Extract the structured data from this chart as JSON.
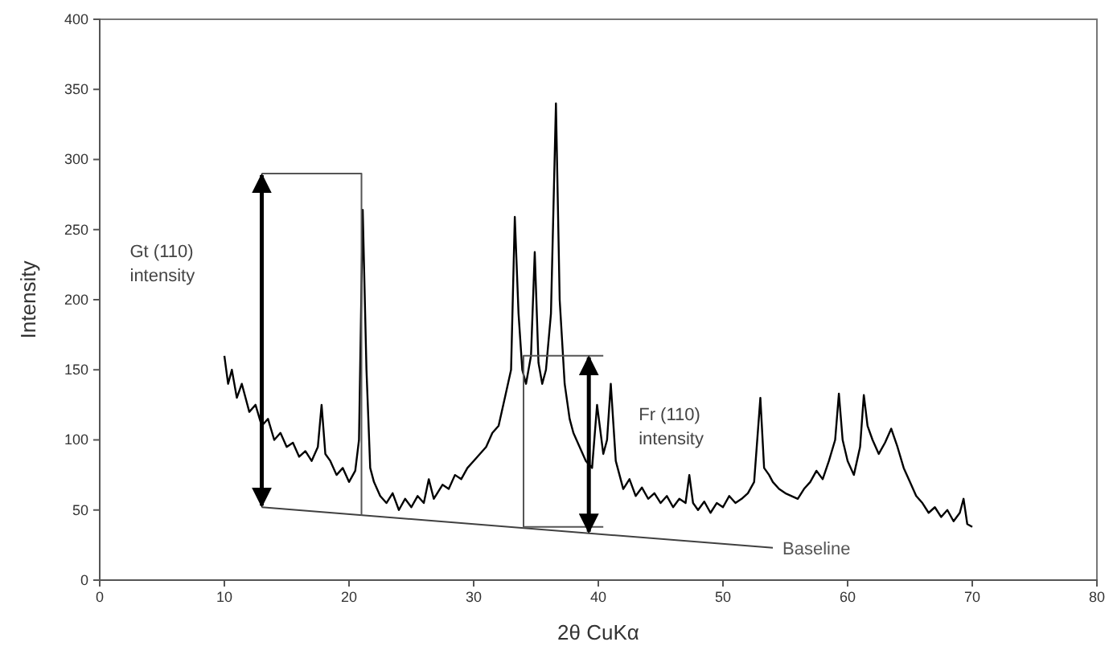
{
  "chart_data": {
    "type": "line",
    "xlabel": "2θ CuKα",
    "ylabel": "Intensity",
    "xlim": [
      0,
      80
    ],
    "xticks": [
      0,
      10,
      20,
      30,
      40,
      50,
      60,
      70,
      80
    ],
    "ylim": [
      0,
      400
    ],
    "yticks": [
      0,
      50,
      100,
      150,
      200,
      250,
      300,
      350,
      400
    ],
    "grid": false,
    "legend": false,
    "marker": "none",
    "line_style": "solid",
    "series": [
      {
        "color": "#000000",
        "x": [
          10,
          10.3,
          10.6,
          11,
          11.4,
          12,
          12.5,
          13,
          13.5,
          14,
          14.5,
          15,
          15.5,
          16,
          16.5,
          17,
          17.5,
          17.8,
          18.1,
          18.5,
          19,
          19.5,
          20,
          20.5,
          20.8,
          21.1,
          21.4,
          21.7,
          22,
          22.5,
          23,
          23.5,
          24,
          24.5,
          25,
          25.5,
          26,
          26.4,
          26.8,
          27.5,
          28,
          28.5,
          29,
          29.5,
          30,
          30.5,
          31,
          31.5,
          32,
          32.5,
          33,
          33.3,
          33.6,
          33.9,
          34.2,
          34.6,
          34.9,
          35.2,
          35.5,
          35.8,
          36.2,
          36.6,
          36.9,
          37.3,
          37.7,
          38,
          38.5,
          39,
          39.5,
          39.9,
          40.4,
          40.7,
          41,
          41.4,
          42,
          42.5,
          43,
          43.5,
          44,
          44.5,
          45,
          45.5,
          46,
          46.5,
          47,
          47.3,
          47.6,
          48,
          48.5,
          49,
          49.5,
          50,
          50.5,
          51,
          51.5,
          52,
          52.5,
          53,
          53.3,
          53.7,
          54,
          54.5,
          55,
          55.5,
          56,
          56.5,
          57,
          57.5,
          58,
          58.5,
          59,
          59.3,
          59.6,
          60,
          60.5,
          61,
          61.3,
          61.6,
          62,
          62.5,
          63,
          63.5,
          64,
          64.5,
          65,
          65.5,
          66,
          66.5,
          67,
          67.5,
          68,
          68.5,
          69,
          69.3,
          69.6,
          70
        ],
        "values": [
          160,
          140,
          150,
          130,
          140,
          120,
          125,
          110,
          115,
          100,
          105,
          95,
          98,
          88,
          92,
          85,
          95,
          125,
          90,
          85,
          75,
          80,
          70,
          78,
          100,
          264,
          150,
          80,
          70,
          60,
          55,
          62,
          50,
          58,
          52,
          60,
          55,
          72,
          58,
          68,
          65,
          75,
          72,
          80,
          85,
          90,
          95,
          105,
          110,
          130,
          150,
          259,
          190,
          150,
          140,
          160,
          234,
          155,
          140,
          150,
          190,
          340,
          200,
          140,
          115,
          105,
          95,
          85,
          80,
          125,
          90,
          100,
          140,
          85,
          65,
          72,
          60,
          66,
          58,
          62,
          55,
          60,
          52,
          58,
          55,
          75,
          55,
          50,
          56,
          48,
          55,
          52,
          60,
          55,
          58,
          62,
          70,
          130,
          80,
          75,
          70,
          65,
          62,
          60,
          58,
          65,
          70,
          78,
          72,
          85,
          100,
          133,
          100,
          85,
          75,
          95,
          132,
          110,
          100,
          90,
          98,
          108,
          95,
          80,
          70,
          60,
          55,
          48,
          52,
          45,
          50,
          42,
          48,
          58,
          40,
          38
        ]
      },
      {
        "name": "Baseline",
        "color": "#404040",
        "x": [
          13,
          54
        ],
        "values": [
          52,
          23
        ]
      },
      {
        "color": "#555555",
        "x": [
          13,
          21,
          21
        ],
        "values": [
          290,
          290,
          46
        ]
      },
      {
        "color": "#555555",
        "x": [
          40.4,
          34,
          34,
          40.4
        ],
        "values": [
          160,
          160,
          38,
          38
        ]
      }
    ],
    "annotations": [
      "Gt (110)\nintensity",
      "Fr (110)\nintensity"
    ]
  }
}
